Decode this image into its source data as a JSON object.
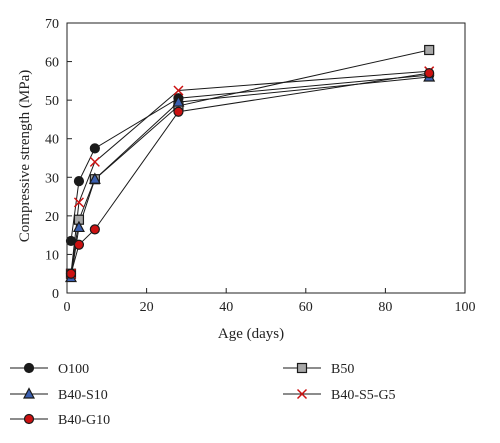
{
  "chart_data": {
    "type": "line",
    "xlabel": "Age (days)",
    "ylabel": "Compressive strength (MPa)",
    "xlim": [
      0,
      100
    ],
    "ylim": [
      0,
      70
    ],
    "xticks": [
      0,
      20,
      40,
      60,
      80,
      100
    ],
    "yticks": [
      0,
      10,
      20,
      30,
      40,
      50,
      60,
      70
    ],
    "grid": false,
    "legend_position": "bottom",
    "series": [
      {
        "name": "O100",
        "marker": "circle",
        "color": "#1a1a1a",
        "fill": "#1a1a1a",
        "points": [
          [
            1,
            13.5
          ],
          [
            3,
            29
          ],
          [
            7,
            37.5
          ],
          [
            28,
            50.5
          ],
          [
            91,
            56.5
          ]
        ]
      },
      {
        "name": "B50",
        "marker": "square",
        "color": "#1a1a1a",
        "fill": "#a8a8a8",
        "points": [
          [
            1,
            5
          ],
          [
            3,
            19
          ],
          [
            7,
            29.5
          ],
          [
            28,
            48.5
          ],
          [
            91,
            63
          ]
        ]
      },
      {
        "name": "B40-S10",
        "marker": "triangle",
        "color": "#1a1a1a",
        "fill": "#3a5fb0",
        "points": [
          [
            1,
            4
          ],
          [
            3,
            17
          ],
          [
            7,
            29.5
          ],
          [
            28,
            49.5
          ],
          [
            91,
            56
          ]
        ]
      },
      {
        "name": "B40-S5-G5",
        "marker": "x",
        "color": "#cc1111",
        "fill": "none",
        "points": [
          [
            1,
            5
          ],
          [
            3,
            23.5
          ],
          [
            7,
            34
          ],
          [
            28,
            52.5
          ],
          [
            91,
            57.5
          ]
        ]
      },
      {
        "name": "B40-G10",
        "marker": "circle",
        "color": "#1a1a1a",
        "fill": "#cc1111",
        "points": [
          [
            1,
            5
          ],
          [
            3,
            12.5
          ],
          [
            7,
            16.5
          ],
          [
            28,
            47
          ],
          [
            91,
            57
          ]
        ]
      }
    ]
  }
}
